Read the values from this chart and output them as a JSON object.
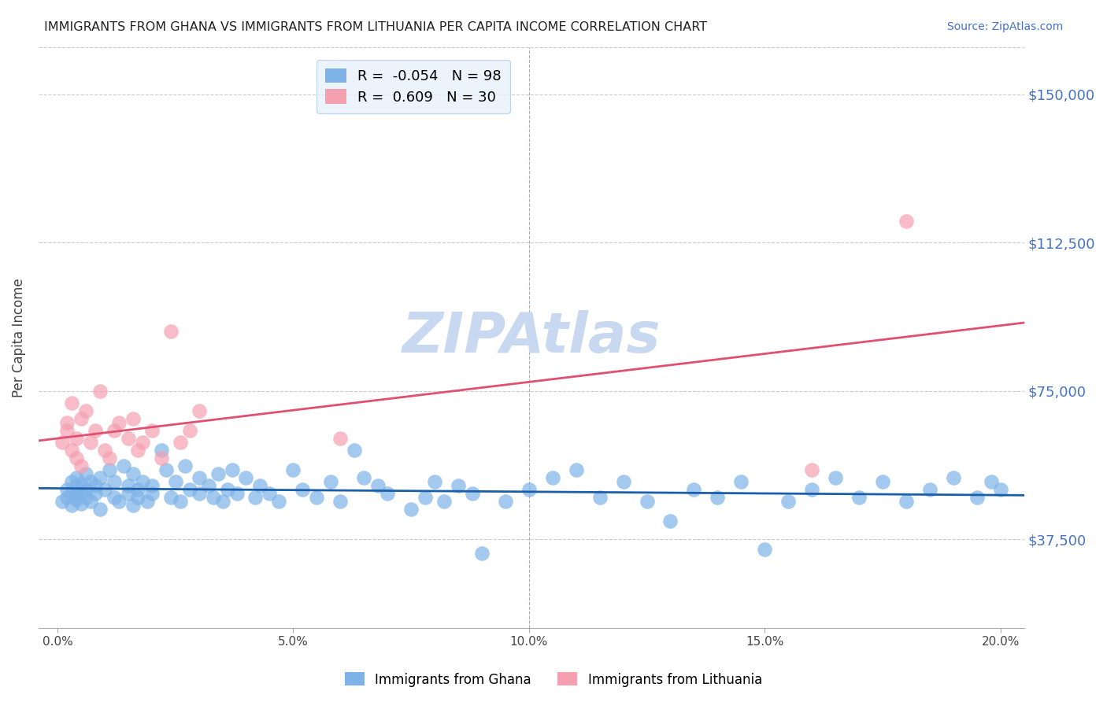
{
  "title": "IMMIGRANTS FROM GHANA VS IMMIGRANTS FROM LITHUANIA PER CAPITA INCOME CORRELATION CHART",
  "source": "Source: ZipAtlas.com",
  "ylabel": "Per Capita Income",
  "xlabel_ticks": [
    "0.0%",
    "5.0%",
    "10.0%",
    "15.0%",
    "20.0%"
  ],
  "xlabel_vals": [
    0.0,
    0.05,
    0.1,
    0.15,
    0.2
  ],
  "ytick_labels": [
    "$37,500",
    "$75,000",
    "$112,500",
    "$150,000"
  ],
  "ytick_vals": [
    37500,
    75000,
    112500,
    150000
  ],
  "ylim": [
    15000,
    162000
  ],
  "xlim": [
    -0.004,
    0.205
  ],
  "ghana_R": -0.054,
  "ghana_N": 98,
  "lithuania_R": 0.609,
  "lithuania_N": 30,
  "ghana_color": "#7EB3E8",
  "lithuania_color": "#F4A0B0",
  "ghana_line_color": "#1A5FA8",
  "lithuania_line_color": "#E05070",
  "watermark": "ZIPAtlas",
  "watermark_color": "#C8D8F0",
  "legend_box_color": "#E8F0FA",
  "ghana_x": [
    0.001,
    0.002,
    0.002,
    0.003,
    0.003,
    0.003,
    0.004,
    0.004,
    0.004,
    0.004,
    0.005,
    0.005,
    0.005,
    0.006,
    0.006,
    0.006,
    0.007,
    0.007,
    0.008,
    0.008,
    0.009,
    0.009,
    0.01,
    0.011,
    0.012,
    0.012,
    0.013,
    0.014,
    0.015,
    0.015,
    0.016,
    0.016,
    0.017,
    0.017,
    0.018,
    0.019,
    0.02,
    0.02,
    0.022,
    0.023,
    0.024,
    0.025,
    0.026,
    0.027,
    0.028,
    0.03,
    0.03,
    0.032,
    0.033,
    0.034,
    0.035,
    0.036,
    0.037,
    0.038,
    0.04,
    0.042,
    0.043,
    0.045,
    0.047,
    0.05,
    0.052,
    0.055,
    0.058,
    0.06,
    0.063,
    0.065,
    0.068,
    0.07,
    0.075,
    0.078,
    0.08,
    0.082,
    0.085,
    0.088,
    0.09,
    0.095,
    0.1,
    0.105,
    0.11,
    0.115,
    0.12,
    0.125,
    0.13,
    0.135,
    0.14,
    0.145,
    0.15,
    0.155,
    0.16,
    0.165,
    0.17,
    0.175,
    0.18,
    0.185,
    0.19,
    0.195,
    0.198,
    0.2
  ],
  "ghana_y": [
    47000,
    48000,
    50000,
    46000,
    49000,
    52000,
    47500,
    51000,
    53000,
    48500,
    49500,
    51500,
    46500,
    48000,
    50000,
    54000,
    47000,
    52000,
    51000,
    49000,
    45000,
    53000,
    50000,
    55000,
    48000,
    52000,
    47000,
    56000,
    51000,
    49000,
    46000,
    54000,
    50000,
    48000,
    52000,
    47000,
    51000,
    49000,
    60000,
    55000,
    48000,
    52000,
    47000,
    56000,
    50000,
    49000,
    53000,
    51000,
    48000,
    54000,
    47000,
    50000,
    55000,
    49000,
    53000,
    48000,
    51000,
    49000,
    47000,
    55000,
    50000,
    48000,
    52000,
    47000,
    60000,
    53000,
    51000,
    49000,
    45000,
    48000,
    52000,
    47000,
    51000,
    49000,
    34000,
    47000,
    50000,
    53000,
    55000,
    48000,
    52000,
    47000,
    42000,
    50000,
    48000,
    52000,
    35000,
    47000,
    50000,
    53000,
    48000,
    52000,
    47000,
    50000,
    53000,
    48000,
    52000,
    50000
  ],
  "lithuania_x": [
    0.001,
    0.002,
    0.002,
    0.003,
    0.003,
    0.004,
    0.004,
    0.005,
    0.005,
    0.006,
    0.007,
    0.008,
    0.009,
    0.01,
    0.011,
    0.012,
    0.013,
    0.015,
    0.016,
    0.017,
    0.018,
    0.02,
    0.022,
    0.024,
    0.026,
    0.028,
    0.03,
    0.06,
    0.16,
    0.18
  ],
  "lithuania_y": [
    62000,
    65000,
    67000,
    60000,
    72000,
    63000,
    58000,
    68000,
    56000,
    70000,
    62000,
    65000,
    75000,
    60000,
    58000,
    65000,
    67000,
    63000,
    68000,
    60000,
    62000,
    65000,
    58000,
    90000,
    62000,
    65000,
    70000,
    63000,
    55000,
    118000
  ]
}
